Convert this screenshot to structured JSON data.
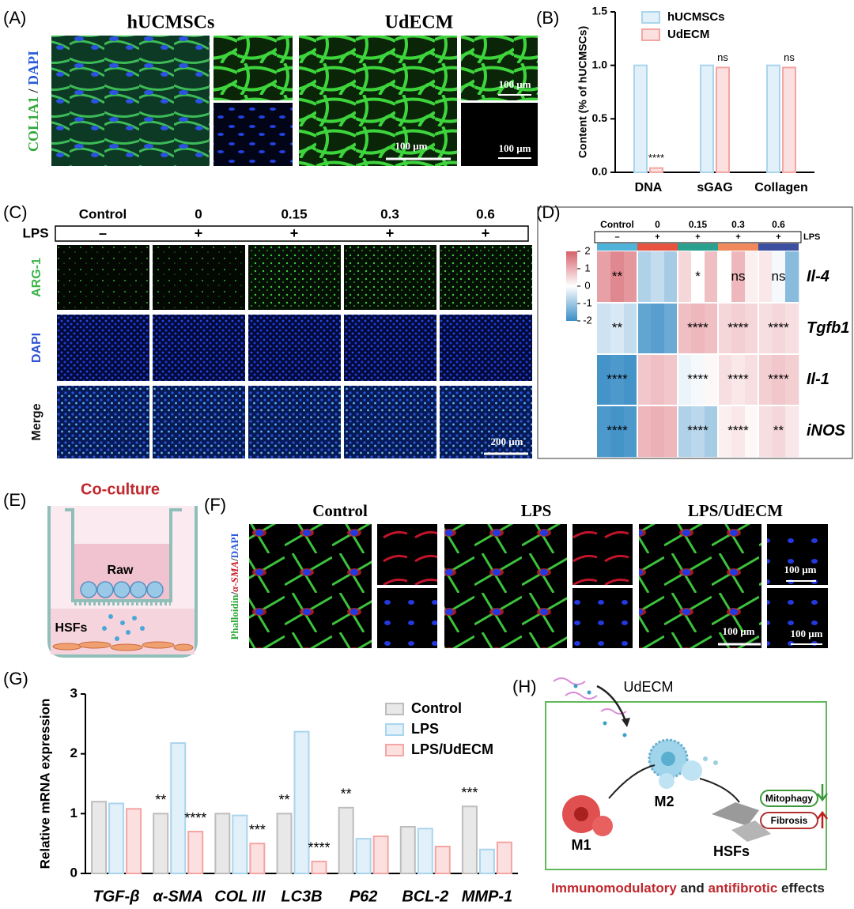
{
  "panel_labels": [
    "(A)",
    "(B)",
    "(C)",
    "(D)",
    "(E)",
    "(F)",
    "(G)",
    "(H)"
  ],
  "panel_a": {
    "titles": [
      "hUCMSCs",
      "UdECM"
    ],
    "stain_label": {
      "marker": "COL1A1",
      "separator": " / ",
      "counterstain": "DAPI"
    },
    "scale_bars": [
      "100 μm",
      "100 μm",
      "100 μm"
    ]
  },
  "panel_c": {
    "columns": [
      "Control",
      "0",
      "0.15",
      "0.3",
      "0.6"
    ],
    "lps_label": "LPS",
    "lps_signs": [
      "–",
      "+",
      "+",
      "+",
      "+"
    ],
    "rows": [
      "ARG-1",
      "DAPI",
      "Merge"
    ],
    "scale_bar": "200 μm"
  },
  "panel_e": {
    "title": "Co-culture",
    "labels": [
      "Raw",
      "HSFs"
    ]
  },
  "panel_f": {
    "titles": [
      "Control",
      "LPS",
      "LPS/UdECM"
    ],
    "stain_label": {
      "a": "Phalloidin",
      "sep1": "/",
      "b": "α-SMA",
      "sep2": "/",
      "c": "DAPI"
    },
    "scale_bars": [
      "100 μm",
      "100 μm",
      "100 μm"
    ]
  },
  "panel_h": {
    "agent": "UdECM",
    "cells": [
      "M1",
      "M2",
      "HSFs"
    ],
    "effects": [
      "Mitophagy",
      "Fibrosis"
    ],
    "caption": [
      "Immunomodulatory",
      " and ",
      "antifibrotic",
      " effects"
    ]
  },
  "chart_data": [
    {
      "type": "bar",
      "ylabel": "Content (% of hUCMSCs)",
      "categories": [
        "DNA",
        "sGAG",
        "Collagen"
      ],
      "series": [
        {
          "name": "hUCMSCs",
          "color": "#a9d5ee",
          "values": [
            1.0,
            1.0,
            1.0
          ]
        },
        {
          "name": "UdECM",
          "color": "#f3a6a3",
          "values": [
            0.04,
            0.98,
            0.98
          ],
          "annotations": [
            "****",
            "ns",
            "ns"
          ]
        }
      ],
      "ylim": [
        0,
        1.5
      ],
      "yticks": [
        {
          "value": 0,
          "label": "0.0"
        },
        0.5,
        {
          "value": 1,
          "label": "1.0"
        },
        1.5
      ],
      "legend": "upper left"
    },
    {
      "type": "heatmap",
      "columns": [
        "Control",
        "0",
        "0.15",
        "0.3",
        "0.6"
      ],
      "lps_label": "LPS",
      "lps_signs": [
        "–",
        "+",
        "+",
        "+",
        "+"
      ],
      "group_colors": [
        "#4fb3d9",
        "#e8533f",
        "#2aa08f",
        "#f08a5d",
        "#3d4f9f"
      ],
      "rows": [
        "Il-4",
        "Tgfb1",
        "Il-1",
        "iNOS"
      ],
      "values": [
        [
          1.2,
          1.5,
          1.3,
          -0.8,
          -0.6,
          -0.9,
          0.5,
          0,
          0.8,
          0,
          0.9,
          0.2,
          0.3,
          -0.1,
          -1.2
        ],
        [
          -0.5,
          -0.4,
          -0.6,
          -1.6,
          -1.7,
          -1.5,
          0.8,
          0.9,
          0.8,
          0.5,
          0.6,
          0.5,
          0.4,
          0.5,
          0.4
        ],
        [
          -1.9,
          -1.8,
          -1.9,
          0.7,
          0.8,
          0.7,
          -0.2,
          -0.1,
          0.1,
          0.4,
          0.3,
          0.4,
          0.6,
          0.7,
          0.6
        ],
        [
          -1.8,
          -1.9,
          -1.8,
          0.9,
          1.0,
          0.9,
          -0.8,
          -0.7,
          -0.9,
          0.2,
          0.3,
          0.1,
          0.4,
          0.5,
          0.3
        ]
      ],
      "annotations": [
        [
          "**",
          null,
          "*",
          "ns",
          "ns"
        ],
        [
          "**",
          null,
          "****",
          "****",
          "****"
        ],
        [
          "****",
          null,
          "****",
          "****",
          "****"
        ],
        [
          "****",
          null,
          "****",
          "****",
          "**"
        ]
      ],
      "zlim": [
        -2,
        2
      ],
      "zticks": [
        2,
        1,
        0,
        -1,
        -2
      ],
      "colors": [
        "#3a8ec6",
        "#ffffff",
        "#d6606a"
      ]
    },
    {
      "type": "bar",
      "ylabel": "Relative mRNA expression",
      "categories": [
        "TGF-β",
        "α-SMA",
        "COL III",
        "LC3B",
        "P62",
        "BCL-2",
        "MMP-1"
      ],
      "series": [
        {
          "name": "Control",
          "color": "#bdbdbd",
          "values": [
            1.2,
            1.0,
            1.0,
            1.0,
            1.1,
            0.78,
            1.12
          ],
          "annotations": [
            null,
            "**",
            null,
            "**",
            "**",
            null,
            "***"
          ]
        },
        {
          "name": "LPS",
          "color": "#a9d5ee",
          "values": [
            1.17,
            2.18,
            0.97,
            2.37,
            0.58,
            0.75,
            0.4
          ]
        },
        {
          "name": "LPS/UdECM",
          "color": "#f3a6a3",
          "values": [
            1.08,
            0.7,
            0.5,
            0.2,
            0.62,
            0.45,
            0.52
          ],
          "annotations": [
            null,
            "****",
            "***",
            "****",
            null,
            null,
            null
          ]
        }
      ],
      "ylim": [
        0,
        3
      ],
      "yticks": [
        0,
        1,
        2,
        3
      ],
      "legend": "upper right"
    }
  ]
}
